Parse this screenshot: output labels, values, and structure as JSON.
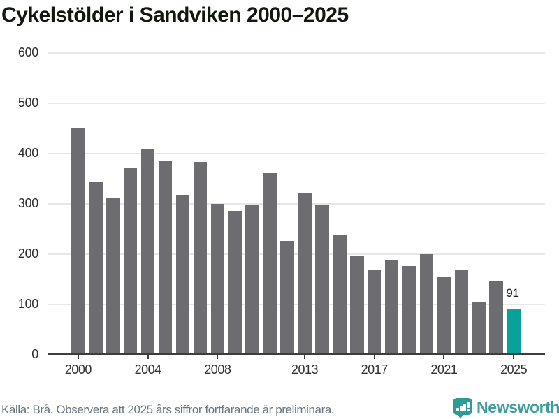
{
  "title": "Cykelstölder i Sandviken 2000–2025",
  "chart_data": {
    "type": "bar",
    "x": [
      2000,
      2001,
      2002,
      2003,
      2004,
      2005,
      2006,
      2007,
      2008,
      2009,
      2010,
      2011,
      2012,
      2013,
      2014,
      2015,
      2016,
      2017,
      2018,
      2019,
      2020,
      2021,
      2022,
      2023,
      2024,
      2025
    ],
    "values": [
      450,
      343,
      313,
      372,
      408,
      386,
      318,
      383,
      300,
      286,
      297,
      361,
      226,
      321,
      297,
      237,
      196,
      170,
      187,
      177,
      200,
      154,
      169,
      105,
      146,
      91
    ],
    "title": "Cykelstölder i Sandviken 2000–2025",
    "xlabel": "",
    "ylabel": "",
    "ylim": [
      0,
      620
    ],
    "y_ticks": [
      0,
      100,
      200,
      300,
      400,
      500,
      600
    ],
    "x_tick_labels": [
      "2000",
      "2004",
      "2008",
      "2013",
      "2017",
      "2021",
      "2025"
    ],
    "grid": "horizontal",
    "legend": "none",
    "bar_color": "#6d6c71",
    "highlight": {
      "year": 2025,
      "value": 91,
      "label": "91",
      "color": "#08a29a"
    }
  },
  "footer": {
    "source_note": "Källa: Brå. Observera att 2025 års siffror fortfarande är preliminära."
  },
  "branding": {
    "logo_text": "Newsworthy",
    "logo_icon": "newsworthy-bar-chart-bubble-icon",
    "logo_color": "#3f9d9d",
    "icon_color": "#2e9b96"
  }
}
